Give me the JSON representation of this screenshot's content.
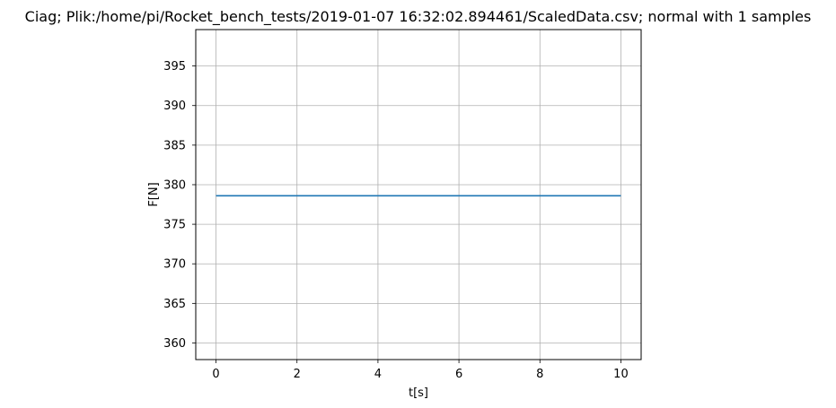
{
  "chart_data": {
    "type": "line",
    "title": "Ciag; Plik:/home/pi/Rocket_bench_tests/2019-01-07 16:32:02.894461/ScaledData.csv; normal with 1 samples",
    "xlabel": "t[s]",
    "ylabel": "F[N]",
    "xlim": [
      -0.5,
      10.5
    ],
    "ylim": [
      357.9,
      399.6
    ],
    "x_ticks": [
      0,
      2,
      4,
      6,
      8,
      10
    ],
    "y_ticks": [
      360,
      365,
      370,
      375,
      380,
      385,
      390,
      395
    ],
    "grid": true,
    "series": [
      {
        "color": "#1f77b4",
        "x": [
          0,
          10
        ],
        "y": [
          378.6,
          378.6
        ]
      }
    ]
  }
}
